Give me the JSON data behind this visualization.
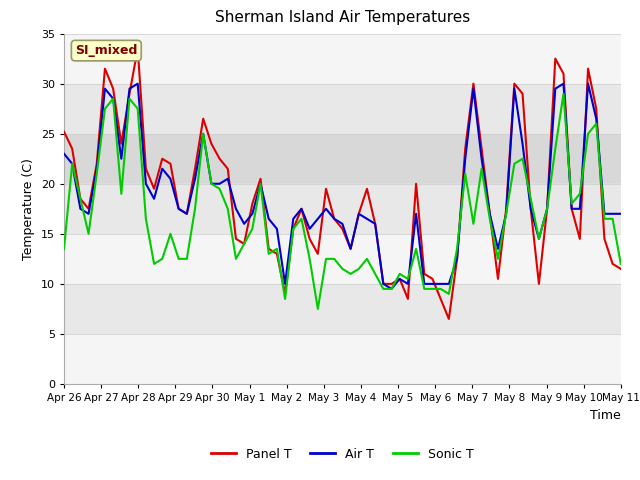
{
  "title": "Sherman Island Air Temperatures",
  "xlabel": "Time",
  "ylabel": "Temperature (C)",
  "ylim": [
    0,
    35
  ],
  "yticks": [
    0,
    5,
    10,
    15,
    20,
    25,
    30,
    35
  ],
  "x_labels": [
    "Apr 26",
    "Apr 27",
    "Apr 28",
    "Apr 29",
    "Apr 30",
    "May 1",
    "May 2",
    "May 3",
    "May 4",
    "May 5",
    "May 6",
    "May 7",
    "May 8",
    "May 9",
    "May 10",
    "May 11"
  ],
  "annotation_text": "SI_mixed",
  "annotation_bg": "#ffffcc",
  "annotation_border": "#aaaaaa",
  "annotation_color": "#800000",
  "panel_T_color": "#dd0000",
  "air_T_color": "#0000cc",
  "sonic_T_color": "#00cc00",
  "bg_color": "#d8d8d8",
  "band_color": "#ebebeb",
  "white_band_color": "#f5f5f5",
  "legend_labels": [
    "Panel T",
    "Air T",
    "Sonic T"
  ],
  "panel_T": [
    25.2,
    23.5,
    18.5,
    17.5,
    22.0,
    31.5,
    29.5,
    24.0,
    29.0,
    33.5,
    21.5,
    19.5,
    22.5,
    22.0,
    17.5,
    17.0,
    21.5,
    26.5,
    24.0,
    22.5,
    21.5,
    14.5,
    14.0,
    18.0,
    20.5,
    13.5,
    13.0,
    9.0,
    15.5,
    17.5,
    14.5,
    13.0,
    19.5,
    16.5,
    15.5,
    13.5,
    17.0,
    19.5,
    16.0,
    10.0,
    10.0,
    10.5,
    8.5,
    20.0,
    11.0,
    10.5,
    8.5,
    6.5,
    12.5,
    23.5,
    30.0,
    23.5,
    17.0,
    10.5,
    17.5,
    30.0,
    29.0,
    17.5,
    10.0,
    17.5,
    32.5,
    31.0,
    17.5,
    14.5,
    31.5,
    27.5,
    14.5,
    12.0,
    11.5
  ],
  "air_T": [
    23.0,
    22.0,
    17.5,
    17.0,
    21.5,
    29.5,
    28.5,
    22.5,
    29.5,
    30.0,
    20.0,
    18.5,
    21.5,
    20.5,
    17.5,
    17.0,
    20.5,
    25.0,
    20.0,
    20.0,
    20.5,
    17.5,
    16.0,
    17.0,
    20.0,
    16.5,
    15.5,
    10.0,
    16.5,
    17.5,
    15.5,
    16.5,
    17.5,
    16.5,
    16.0,
    13.5,
    17.0,
    16.5,
    16.0,
    10.0,
    9.5,
    10.5,
    10.0,
    17.0,
    10.0,
    10.0,
    10.0,
    10.0,
    12.5,
    22.5,
    29.5,
    22.5,
    17.0,
    13.5,
    17.0,
    29.5,
    24.0,
    17.5,
    14.5,
    17.5,
    29.5,
    30.0,
    17.5,
    17.5,
    30.0,
    26.5,
    17.0,
    17.0,
    17.0
  ],
  "sonic_T": [
    13.5,
    22.0,
    18.5,
    15.0,
    21.0,
    27.5,
    28.5,
    19.0,
    28.5,
    27.5,
    16.5,
    12.0,
    12.5,
    15.0,
    12.5,
    12.5,
    17.5,
    25.0,
    20.0,
    19.5,
    17.5,
    12.5,
    14.0,
    15.5,
    20.0,
    13.0,
    13.5,
    8.5,
    15.5,
    16.5,
    12.5,
    7.5,
    12.5,
    12.5,
    11.5,
    11.0,
    11.5,
    12.5,
    11.0,
    9.5,
    9.5,
    11.0,
    10.5,
    13.5,
    9.5,
    9.5,
    9.5,
    9.0,
    13.5,
    21.0,
    16.0,
    21.5,
    16.5,
    12.5,
    17.0,
    22.0,
    22.5,
    18.5,
    14.5,
    17.5,
    23.5,
    29.0,
    18.0,
    19.0,
    25.0,
    26.0,
    16.5,
    16.5,
    12.0
  ],
  "n_points": 69
}
